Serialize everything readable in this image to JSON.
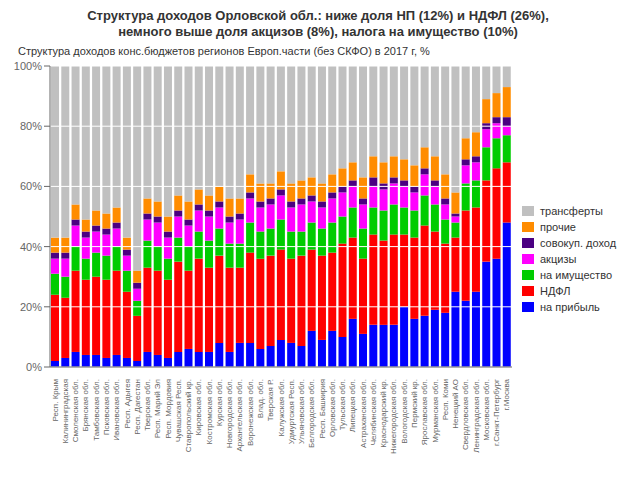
{
  "chart_data": {
    "type": "bar",
    "stacked": true,
    "title": "Структура доходов Орловской обл.: ниже доля НП (12%) и НДФЛ (26%),\nнемного выше доля акцизов (8%), налога на имущество (10%)",
    "subtitle": "Структура доходов конс.бюджетов регионов Европ.части (без СКФО) в 2017 г, %",
    "categories": [
      "Респ. Крым",
      "Калининградская",
      "Смоленская обл.",
      "Брянская обл.",
      "Тамбовская обл.",
      "Псковская обл.",
      "Ивановская обл.",
      "Респ. Адыгея",
      "Респ. Дагестан",
      "Тверская обл.",
      "Респ. Марий Эл",
      "Респ. Мордовия",
      "Чувашская Респ.",
      "Ставропольский кр.",
      "Кировская обл.",
      "Костромская обл.",
      "Курская обл.",
      "Новгородская обл.",
      "Архангельская обл.",
      "Воронежская обл.",
      "Влад. обл.",
      "Тверская Р.",
      "Калужская обл.",
      "Удмуртская Респ.",
      "Ульяновская обл.",
      "Белгородская обл.",
      "Респ. Башкирия",
      "Орловская обл.",
      "Тульская обл.",
      "Липецкая обл.",
      "Астраханская обл.",
      "Челябинская обл.",
      "Краснодарский кр.",
      "Нижегородская обл.",
      "Вологодская обл.",
      "Пермский кр.",
      "Ярославская обл.",
      "Мурманская обл.",
      "Респ. Коми",
      "Ненецкий АО",
      "Свердловская обл.",
      "Ленинградская обл.",
      "Московская обл.",
      "г.Санкт-Петербург",
      "г.Москва"
    ],
    "series": [
      {
        "name": "на прибыль",
        "color": "#0000FF",
        "values": [
          2,
          3,
          5,
          4,
          4,
          3,
          4,
          3,
          2,
          5,
          4,
          3,
          5,
          6,
          5,
          5,
          8,
          5,
          8,
          8,
          6,
          7,
          9,
          8,
          7,
          12,
          9,
          12,
          10,
          16,
          11,
          14,
          14,
          14,
          20,
          16,
          17,
          19,
          18,
          25,
          22,
          25,
          35,
          36,
          48
        ]
      },
      {
        "name": "НДФЛ",
        "color": "#FF0000",
        "values": [
          22,
          20,
          27,
          25,
          26,
          26,
          28,
          22,
          15,
          28,
          28,
          26,
          30,
          26,
          31,
          28,
          29,
          28,
          25,
          30,
          30,
          30,
          30,
          28,
          30,
          27,
          28,
          26,
          31,
          27,
          25,
          30,
          28,
          30,
          24,
          27,
          30,
          26,
          23,
          18,
          30,
          28,
          27,
          30,
          20
        ]
      },
      {
        "name": "на имущество",
        "color": "#00CC00",
        "values": [
          7,
          7,
          8,
          7,
          8,
          8,
          8,
          7,
          5,
          9,
          8,
          7,
          8,
          8,
          9,
          9,
          9,
          8,
          8,
          10,
          9,
          9,
          10,
          9,
          8,
          9,
          9,
          10,
          9,
          10,
          10,
          9,
          10,
          10,
          9,
          9,
          10,
          9,
          8,
          5,
          9,
          9,
          11,
          10,
          9
        ]
      },
      {
        "name": "акцизы",
        "color": "#FF00FF",
        "values": [
          5,
          6,
          7,
          7,
          7,
          7,
          6,
          5,
          4,
          7,
          8,
          7,
          7,
          7,
          7,
          8,
          7,
          7,
          8,
          8,
          8,
          8,
          8,
          8,
          9,
          7,
          7,
          8,
          8,
          7,
          8,
          7,
          7,
          7,
          7,
          6,
          7,
          6,
          5,
          2,
          6,
          6,
          6,
          5,
          3
        ]
      },
      {
        "name": "совокуп. доход",
        "color": "#4B0082",
        "values": [
          2,
          2,
          2,
          2,
          2,
          2,
          2,
          2,
          2,
          2,
          2,
          2,
          2,
          2,
          2,
          2,
          2,
          2,
          2,
          2,
          2,
          2,
          2,
          2,
          2,
          2,
          2,
          2,
          2,
          2,
          2,
          3,
          2,
          2,
          2,
          2,
          2,
          2,
          2,
          1,
          2,
          2,
          2,
          2,
          3
        ]
      },
      {
        "name": "прочие",
        "color": "#FF8C00",
        "values": [
          5,
          5,
          5,
          4,
          5,
          5,
          5,
          4,
          4,
          5,
          5,
          5,
          5,
          6,
          5,
          5,
          5,
          6,
          5,
          6,
          6,
          5,
          6,
          6,
          6,
          6,
          6,
          6,
          6,
          6,
          7,
          7,
          7,
          7,
          7,
          7,
          7,
          8,
          8,
          7,
          7,
          8,
          8,
          8,
          10
        ]
      },
      {
        "name": "трансферты",
        "color": "#C0C0C0",
        "values": [
          57,
          57,
          46,
          51,
          48,
          49,
          47,
          57,
          68,
          44,
          45,
          50,
          43,
          45,
          41,
          43,
          40,
          44,
          44,
          36,
          39,
          39,
          35,
          39,
          38,
          37,
          39,
          36,
          34,
          32,
          37,
          30,
          32,
          30,
          31,
          33,
          27,
          30,
          36,
          42,
          24,
          22,
          11,
          9,
          7
        ]
      }
    ],
    "ylim": [
      0,
      100
    ],
    "yticks": [
      {
        "value": 0,
        "label": "0%"
      },
      {
        "value": 20,
        "label": "20%"
      },
      {
        "value": 40,
        "label": "40%"
      },
      {
        "value": 60,
        "label": "60%"
      },
      {
        "value": 80,
        "label": "80%"
      },
      {
        "value": 100,
        "label": "100%"
      }
    ],
    "grid": true,
    "legend": "right"
  }
}
